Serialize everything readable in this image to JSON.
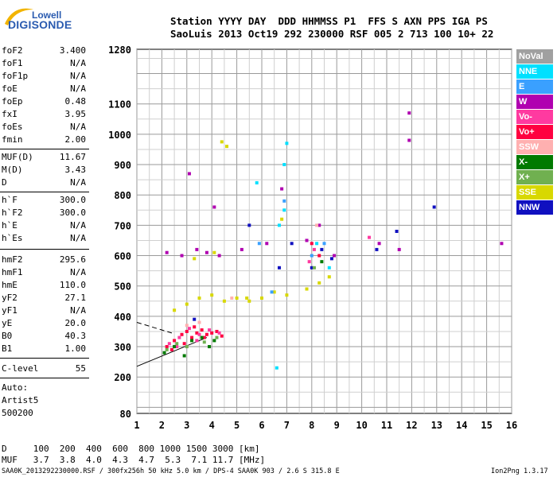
{
  "header": {
    "logo_top": "Lowell",
    "logo_bottom": "DIGISONDE",
    "line1": "Station YYYY DAY  DDD HHMMSS P1  FFS S AXN PPS IGA PS",
    "line2": "SaoLuis 2013 Oct19 292 230000 RSF 005 2 713 100 10+ 22"
  },
  "params_group1": [
    {
      "k": "foF2",
      "v": "3.400"
    },
    {
      "k": "foF1",
      "v": "N/A"
    },
    {
      "k": "foF1p",
      "v": "N/A"
    },
    {
      "k": "foE",
      "v": "N/A"
    },
    {
      "k": "foEp",
      "v": "0.48"
    },
    {
      "k": "fxI",
      "v": "3.95"
    },
    {
      "k": "foEs",
      "v": "N/A"
    },
    {
      "k": "fmin",
      "v": "2.00"
    }
  ],
  "params_group2": [
    {
      "k": "MUF(D)",
      "v": "11.67"
    },
    {
      "k": "M(D)",
      "v": "3.43"
    },
    {
      "k": "D",
      "v": "N/A"
    }
  ],
  "params_group3": [
    {
      "k": "h`F",
      "v": "300.0"
    },
    {
      "k": "h`F2",
      "v": "300.0"
    },
    {
      "k": "h`E",
      "v": "N/A"
    },
    {
      "k": "h`Es",
      "v": "N/A"
    }
  ],
  "params_group4": [
    {
      "k": "hmF2",
      "v": "295.6"
    },
    {
      "k": "hmF1",
      "v": "N/A"
    },
    {
      "k": "hmE",
      "v": "110.0"
    },
    {
      "k": "yF2",
      "v": "27.1"
    },
    {
      "k": "yF1",
      "v": "N/A"
    },
    {
      "k": "yE",
      "v": "20.0"
    },
    {
      "k": "B0",
      "v": "40.3"
    },
    {
      "k": "B1",
      "v": "1.00"
    }
  ],
  "clevel": {
    "k": "C-level",
    "v": "55"
  },
  "auto_lines": [
    "Auto:",
    "Artist5",
    "500200"
  ],
  "legend": [
    {
      "label": "NoVal",
      "color": "#a0a0a0"
    },
    {
      "label": "NNE",
      "color": "#00e0ff"
    },
    {
      "label": "E",
      "color": "#3aa0ff"
    },
    {
      "label": "W",
      "color": "#b000b0"
    },
    {
      "label": "Vo-",
      "color": "#ff3aa0"
    },
    {
      "label": "Vo+",
      "color": "#ff0040"
    },
    {
      "label": "SSW",
      "color": "#ffb0b0"
    },
    {
      "label": "X-",
      "color": "#007a00"
    },
    {
      "label": "X+",
      "color": "#70b050"
    },
    {
      "label": "SSE",
      "color": "#d8d800"
    },
    {
      "label": "NNW",
      "color": "#1010c0"
    }
  ],
  "footer": {
    "d_row": "D     100  200  400  600  800 1000 1500 3000 [km]",
    "muf_row": "MUF   3.7  3.8  4.0  4.3  4.7  5.3  7.1 11.7 [MHz]",
    "file_line": "SAA0K_2013292230000.RSF / 300fx256h 50 kHz 5.0 km / DPS-4 SAA0K 903 / 2.6 S 315.8 E",
    "version": "Ion2Png 1.3.17"
  },
  "chart_data": {
    "type": "scatter",
    "xlim": [
      1,
      16
    ],
    "ylim": [
      80,
      1280
    ],
    "x_ticks": [
      1,
      2,
      3,
      4,
      5,
      6,
      7,
      8,
      9,
      10,
      11,
      12,
      13,
      14,
      15,
      16
    ],
    "y_ticks": [
      80,
      200,
      300,
      400,
      500,
      600,
      700,
      800,
      900,
      1000,
      1100,
      1280
    ],
    "grid": true,
    "series": [
      {
        "name": "Vo+",
        "color": "#ff0040",
        "points": [
          [
            2.2,
            300
          ],
          [
            2.5,
            320
          ],
          [
            2.8,
            340
          ],
          [
            3.0,
            350
          ],
          [
            3.2,
            330
          ],
          [
            3.4,
            345
          ],
          [
            3.6,
            355
          ],
          [
            3.8,
            340
          ],
          [
            4.0,
            345
          ],
          [
            4.2,
            350
          ],
          [
            2.4,
            290
          ],
          [
            2.9,
            310
          ],
          [
            3.3,
            365
          ],
          [
            3.7,
            330
          ],
          [
            4.4,
            335
          ],
          [
            8.0,
            640
          ],
          [
            8.3,
            600
          ]
        ]
      },
      {
        "name": "Vo-",
        "color": "#ff3aa0",
        "points": [
          [
            2.3,
            310
          ],
          [
            2.7,
            330
          ],
          [
            3.1,
            360
          ],
          [
            3.5,
            340
          ],
          [
            3.9,
            355
          ],
          [
            4.3,
            345
          ],
          [
            2.6,
            300
          ],
          [
            3.4,
            320
          ],
          [
            8.1,
            620
          ],
          [
            7.9,
            580
          ],
          [
            10.3,
            660
          ]
        ]
      },
      {
        "name": "SSE",
        "color": "#d8d800",
        "points": [
          [
            2.5,
            420
          ],
          [
            3.0,
            440
          ],
          [
            3.5,
            460
          ],
          [
            4.0,
            470
          ],
          [
            4.5,
            450
          ],
          [
            5.0,
            460
          ],
          [
            5.5,
            450
          ],
          [
            6.0,
            460
          ],
          [
            6.5,
            480
          ],
          [
            7.0,
            470
          ],
          [
            7.8,
            490
          ],
          [
            8.3,
            510
          ],
          [
            8.7,
            530
          ],
          [
            3.3,
            590
          ],
          [
            4.1,
            610
          ],
          [
            4.6,
            960
          ],
          [
            4.4,
            975
          ],
          [
            5.4,
            460
          ],
          [
            6.8,
            720
          ]
        ]
      },
      {
        "name": "W",
        "color": "#b000b0",
        "points": [
          [
            2.2,
            610
          ],
          [
            2.8,
            600
          ],
          [
            3.4,
            620
          ],
          [
            3.8,
            610
          ],
          [
            4.3,
            600
          ],
          [
            5.2,
            620
          ],
          [
            6.2,
            640
          ],
          [
            6.8,
            820
          ],
          [
            7.8,
            650
          ],
          [
            8.3,
            700
          ],
          [
            8.9,
            600
          ],
          [
            10.7,
            640
          ],
          [
            11.5,
            620
          ],
          [
            11.9,
            980
          ],
          [
            11.9,
            1070
          ],
          [
            15.6,
            640
          ],
          [
            3.1,
            870
          ],
          [
            4.1,
            760
          ]
        ]
      },
      {
        "name": "NNW",
        "color": "#1010c0",
        "points": [
          [
            8.0,
            560
          ],
          [
            8.4,
            620
          ],
          [
            8.8,
            590
          ],
          [
            7.2,
            640
          ],
          [
            6.7,
            560
          ],
          [
            5.5,
            700
          ],
          [
            3.3,
            390
          ],
          [
            11.4,
            680
          ],
          [
            10.6,
            620
          ],
          [
            12.9,
            760
          ]
        ]
      },
      {
        "name": "NNE",
        "color": "#00e0ff",
        "points": [
          [
            6.6,
            230
          ],
          [
            6.7,
            700
          ],
          [
            6.9,
            750
          ],
          [
            7.0,
            970
          ],
          [
            5.8,
            840
          ],
          [
            8.2,
            640
          ],
          [
            8.7,
            560
          ],
          [
            6.9,
            900
          ]
        ]
      },
      {
        "name": "X-",
        "color": "#007a00",
        "points": [
          [
            2.1,
            280
          ],
          [
            2.5,
            300
          ],
          [
            3.2,
            320
          ],
          [
            3.6,
            330
          ],
          [
            4.1,
            320
          ],
          [
            2.9,
            270
          ],
          [
            3.9,
            300
          ],
          [
            8.4,
            580
          ]
        ]
      },
      {
        "name": "X+",
        "color": "#70b050",
        "points": [
          [
            2.2,
            290
          ],
          [
            2.6,
            310
          ],
          [
            3.0,
            300
          ],
          [
            3.7,
            315
          ],
          [
            4.2,
            330
          ],
          [
            8.1,
            560
          ]
        ]
      },
      {
        "name": "E",
        "color": "#3aa0ff",
        "points": [
          [
            6.9,
            780
          ],
          [
            8.0,
            600
          ],
          [
            8.5,
            640
          ],
          [
            5.9,
            640
          ],
          [
            6.4,
            480
          ]
        ]
      },
      {
        "name": "SSW",
        "color": "#ffb0b0",
        "points": [
          [
            3.0,
            370
          ],
          [
            3.5,
            380
          ],
          [
            8.2,
            700
          ],
          [
            4.8,
            460
          ]
        ]
      }
    ],
    "guides": [
      {
        "name": "solid",
        "points": [
          [
            1,
            235
          ],
          [
            3.8,
            330
          ]
        ]
      },
      {
        "name": "dashed",
        "points": [
          [
            1,
            380
          ],
          [
            2.4,
            345
          ]
        ]
      }
    ]
  }
}
